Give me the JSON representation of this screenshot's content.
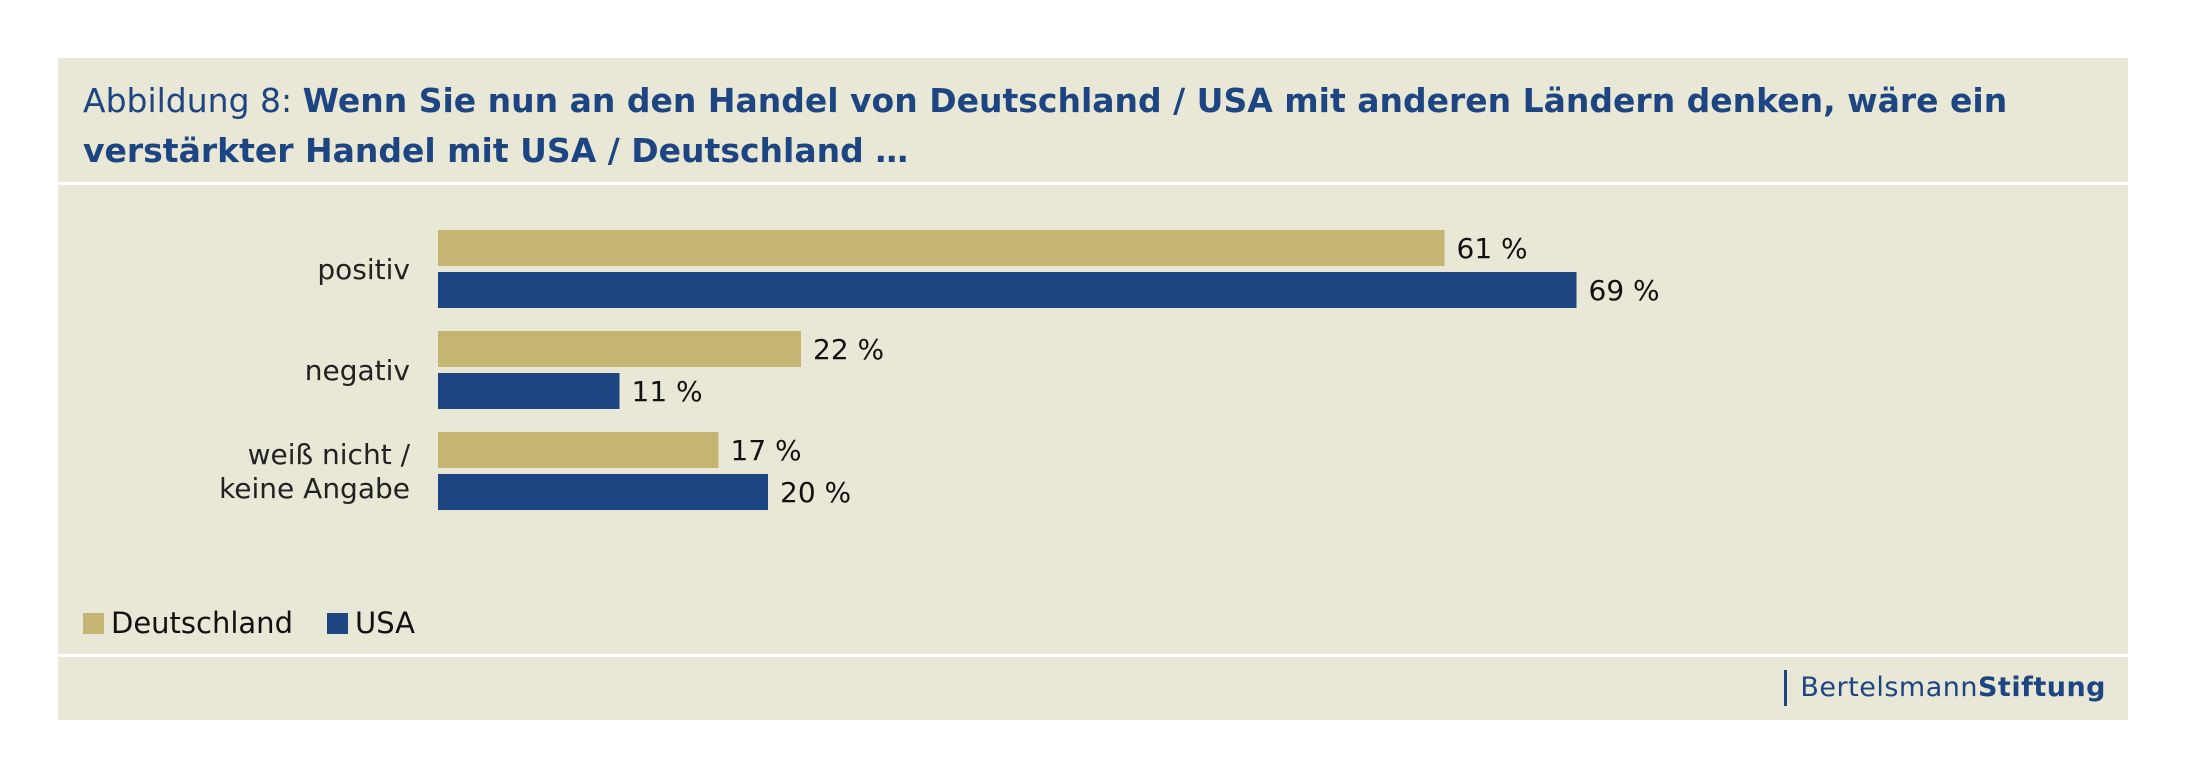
{
  "title": {
    "prefix": "Abbildung 8: ",
    "main": "Wenn Sie nun an den Handel von Deutschland / USA mit anderen Ländern denken, wäre ein verstärkter Handel mit USA / Deutschland …"
  },
  "brand": {
    "light": "Bertelsmann",
    "bold": "Stiftung"
  },
  "chart_data": {
    "type": "bar",
    "orientation": "horizontal",
    "categories": [
      "positiv",
      "negativ",
      "weiß nicht / keine Angabe"
    ],
    "category_lines": [
      [
        "positiv"
      ],
      [
        "negativ"
      ],
      [
        "weiß nicht /",
        "keine Angabe"
      ]
    ],
    "series": [
      {
        "name": "Deutschland",
        "color": "#c5b573",
        "values": [
          61,
          22,
          17
        ],
        "labels": [
          "61 %",
          "22 %",
          "17 %"
        ]
      },
      {
        "name": "USA",
        "color": "#1c4582",
        "values": [
          69,
          11,
          20
        ],
        "labels": [
          "69 %",
          "11 %",
          "20 %"
        ]
      }
    ],
    "xlim": [
      0,
      100
    ],
    "grid": false,
    "legend_position": "bottom-left"
  }
}
